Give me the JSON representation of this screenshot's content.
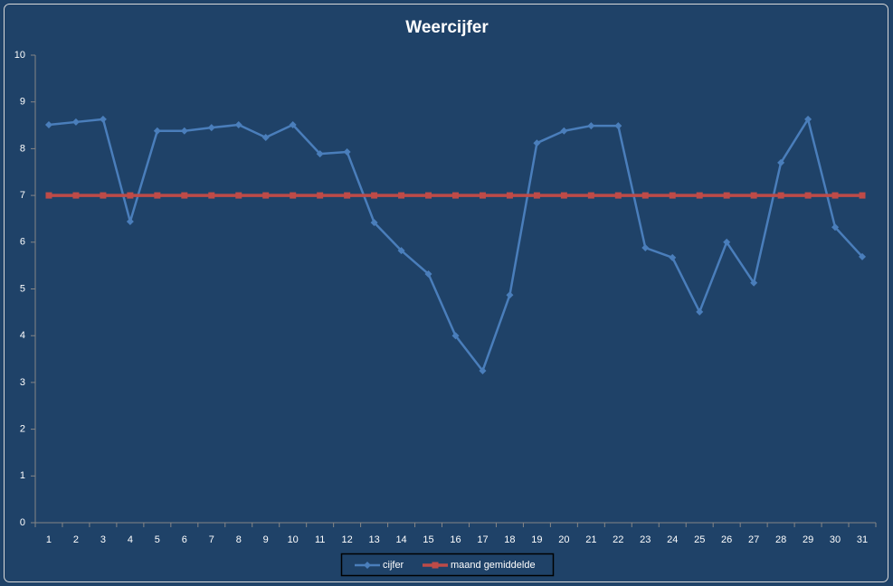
{
  "chart_data": {
    "type": "line",
    "title": "Weercijfer",
    "categories": [
      "1",
      "2",
      "3",
      "4",
      "5",
      "6",
      "7",
      "8",
      "9",
      "10",
      "11",
      "12",
      "13",
      "14",
      "15",
      "16",
      "17",
      "18",
      "19",
      "20",
      "21",
      "22",
      "23",
      "24",
      "25",
      "26",
      "27",
      "28",
      "29",
      "30",
      "31"
    ],
    "series": [
      {
        "name": "cijfer",
        "color": "#4a7ebb",
        "marker": "diamond",
        "values": [
          8.51,
          8.57,
          8.63,
          6.44,
          8.38,
          8.38,
          8.45,
          8.51,
          8.24,
          8.51,
          7.89,
          7.93,
          6.42,
          5.82,
          5.32,
          4.0,
          3.25,
          4.87,
          8.12,
          8.38,
          8.49,
          8.49,
          5.88,
          5.67,
          4.51,
          6.0,
          5.13,
          7.7,
          8.63,
          6.32,
          5.69
        ]
      },
      {
        "name": "maand gemiddelde",
        "color": "#be4b48",
        "marker": "square",
        "values": [
          7,
          7,
          7,
          7,
          7,
          7,
          7,
          7,
          7,
          7,
          7,
          7,
          7,
          7,
          7,
          7,
          7,
          7,
          7,
          7,
          7,
          7,
          7,
          7,
          7,
          7,
          7,
          7,
          7,
          7,
          7
        ]
      }
    ],
    "ylim": [
      0,
      10
    ],
    "yticks": [
      0,
      1,
      2,
      3,
      4,
      5,
      6,
      7,
      8,
      9,
      10
    ],
    "grid": false,
    "legend": "bottom"
  }
}
